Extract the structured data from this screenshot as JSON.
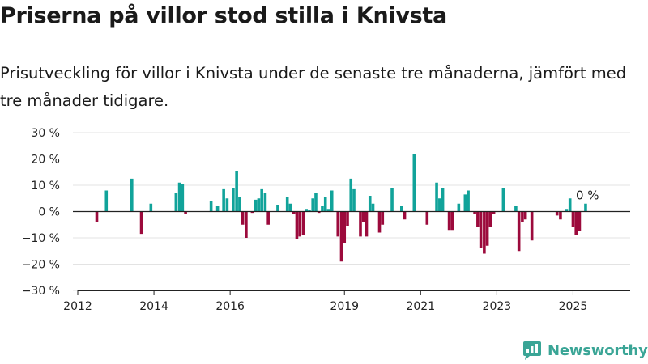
{
  "title": "Priserna på villor stod stilla i Knivsta",
  "subtitle": "Prisutveckling för villor i Knivsta under de senaste tre månaderna, jämfört med tre månader tidigare.",
  "brand": "Newsworthy",
  "colors": {
    "positive": "#11a39a",
    "negative": "#9c0a3c",
    "grid": "#e3e3e3",
    "zero_line": "#222222",
    "brand": "#3aa596"
  },
  "chart_data": {
    "type": "bar",
    "title": "",
    "xlabel": "",
    "ylabel": "",
    "ylim": [
      -30,
      30
    ],
    "y_ticks": [
      {
        "value": 30,
        "label": "30 %"
      },
      {
        "value": 20,
        "label": "20 %"
      },
      {
        "value": 10,
        "label": "10 %"
      },
      {
        "value": 0,
        "label": "0 %"
      },
      {
        "value": -10,
        "label": "−10 %"
      },
      {
        "value": -20,
        "label": "−20 %"
      },
      {
        "value": -30,
        "label": "−30 %"
      }
    ],
    "x_range": [
      2012.0,
      2026.5
    ],
    "x_ticks": [
      {
        "value": 2012.0,
        "label": "2012"
      },
      {
        "value": 2014.0,
        "label": "2014"
      },
      {
        "value": 2016.0,
        "label": "2016"
      },
      {
        "value": 2019.0,
        "label": "2019"
      },
      {
        "value": 2021.0,
        "label": "2021"
      },
      {
        "value": 2023.0,
        "label": "2023"
      },
      {
        "value": 2025.0,
        "label": "2025"
      }
    ],
    "grid": true,
    "last_value_label": "0 %",
    "last_value": 0,
    "points": [
      [
        2012.5,
        -4
      ],
      [
        2012.75,
        8
      ],
      [
        2013.42,
        12.5
      ],
      [
        2013.67,
        -8.5
      ],
      [
        2013.92,
        3
      ],
      [
        2014.58,
        7
      ],
      [
        2014.67,
        11
      ],
      [
        2014.75,
        10.5
      ],
      [
        2014.83,
        -1
      ],
      [
        2015.5,
        4
      ],
      [
        2015.67,
        2
      ],
      [
        2015.83,
        8.5
      ],
      [
        2015.92,
        5
      ],
      [
        2016.08,
        9
      ],
      [
        2016.17,
        15.5
      ],
      [
        2016.25,
        5.5
      ],
      [
        2016.33,
        -5
      ],
      [
        2016.42,
        -10
      ],
      [
        2016.58,
        -0.5
      ],
      [
        2016.67,
        4.5
      ],
      [
        2016.75,
        5
      ],
      [
        2016.83,
        8.5
      ],
      [
        2016.92,
        7
      ],
      [
        2017.0,
        -5
      ],
      [
        2017.25,
        2.5
      ],
      [
        2017.5,
        5.5
      ],
      [
        2017.58,
        3
      ],
      [
        2017.67,
        -1
      ],
      [
        2017.75,
        -10.5
      ],
      [
        2017.83,
        -9.5
      ],
      [
        2017.92,
        -9
      ],
      [
        2018.0,
        1
      ],
      [
        2018.08,
        0.5
      ],
      [
        2018.17,
        5
      ],
      [
        2018.25,
        7
      ],
      [
        2018.33,
        -0.5
      ],
      [
        2018.42,
        2
      ],
      [
        2018.5,
        5.5
      ],
      [
        2018.58,
        1
      ],
      [
        2018.67,
        8
      ],
      [
        2018.83,
        -9.5
      ],
      [
        2018.92,
        -19
      ],
      [
        2019.0,
        -12
      ],
      [
        2019.08,
        -5.5
      ],
      [
        2019.17,
        12.5
      ],
      [
        2019.25,
        8.5
      ],
      [
        2019.42,
        -9.5
      ],
      [
        2019.5,
        -4
      ],
      [
        2019.58,
        -9.5
      ],
      [
        2019.67,
        6
      ],
      [
        2019.75,
        3
      ],
      [
        2019.92,
        -8
      ],
      [
        2020.0,
        -5
      ],
      [
        2020.25,
        9
      ],
      [
        2020.5,
        2
      ],
      [
        2020.58,
        -3
      ],
      [
        2020.83,
        22
      ],
      [
        2021.17,
        -5
      ],
      [
        2021.42,
        11
      ],
      [
        2021.5,
        5
      ],
      [
        2021.58,
        9
      ],
      [
        2021.75,
        -7
      ],
      [
        2021.83,
        -7
      ],
      [
        2022.0,
        3
      ],
      [
        2022.17,
        6.5
      ],
      [
        2022.25,
        8
      ],
      [
        2022.42,
        -1
      ],
      [
        2022.5,
        -6
      ],
      [
        2022.58,
        -14
      ],
      [
        2022.67,
        -16
      ],
      [
        2022.75,
        -13
      ],
      [
        2022.83,
        -6
      ],
      [
        2022.92,
        -1
      ],
      [
        2023.17,
        9
      ],
      [
        2023.5,
        2
      ],
      [
        2023.58,
        -15
      ],
      [
        2023.67,
        -4
      ],
      [
        2023.75,
        -3
      ],
      [
        2023.92,
        -11
      ],
      [
        2024.58,
        -1.5
      ],
      [
        2024.67,
        -3
      ],
      [
        2024.83,
        1
      ],
      [
        2024.92,
        5
      ],
      [
        2025.0,
        -6
      ],
      [
        2025.08,
        -9
      ],
      [
        2025.17,
        -7.5
      ],
      [
        2025.33,
        3
      ]
    ]
  }
}
